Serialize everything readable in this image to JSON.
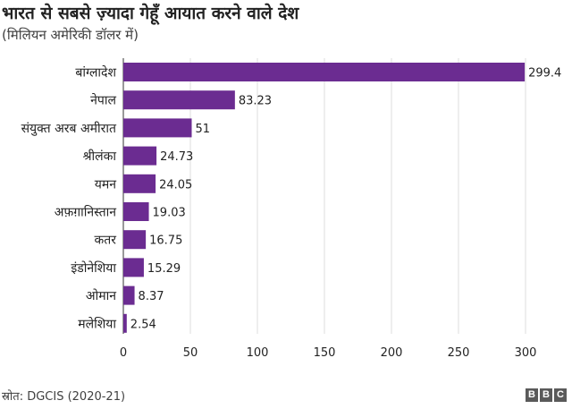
{
  "header": {
    "title": "भारत से सबसे ज़्यादा गेहूँ आयात करने वाले देश",
    "subtitle": "(मिलियन अमेरिकी डॉलर में)"
  },
  "footer": {
    "source": "स्रोत: DGCIS (2020-21)",
    "logo_letters": [
      "B",
      "B",
      "C"
    ]
  },
  "chart_data": {
    "type": "bar",
    "orientation": "horizontal",
    "title": "भारत से सबसे ज़्यादा गेहूँ आयात करने वाले देश",
    "subtitle": "(मिलियन अमेरिकी डॉलर में)",
    "categories": [
      "बांग्लादेश",
      "नेपाल",
      "संयुक्त अरब अमीरात",
      "श्रीलंका",
      "यमन",
      "अफ़ग़ानिस्तान",
      "कतर",
      "इंडोनेशिया",
      "ओमान",
      "मलेशिया"
    ],
    "values": [
      299.4,
      83.23,
      51,
      24.73,
      24.05,
      19.03,
      16.75,
      15.29,
      8.37,
      2.54
    ],
    "value_labels": [
      "299.4",
      "83.23",
      "51",
      "24.73",
      "24.05",
      "19.03",
      "16.75",
      "15.29",
      "8.37",
      "2.54"
    ],
    "xlim": [
      0,
      300
    ],
    "xticks": [
      0,
      50,
      100,
      150,
      200,
      250,
      300
    ],
    "grid": true,
    "bar_color": "#6b2c91",
    "grid_color": "#dddddd"
  }
}
